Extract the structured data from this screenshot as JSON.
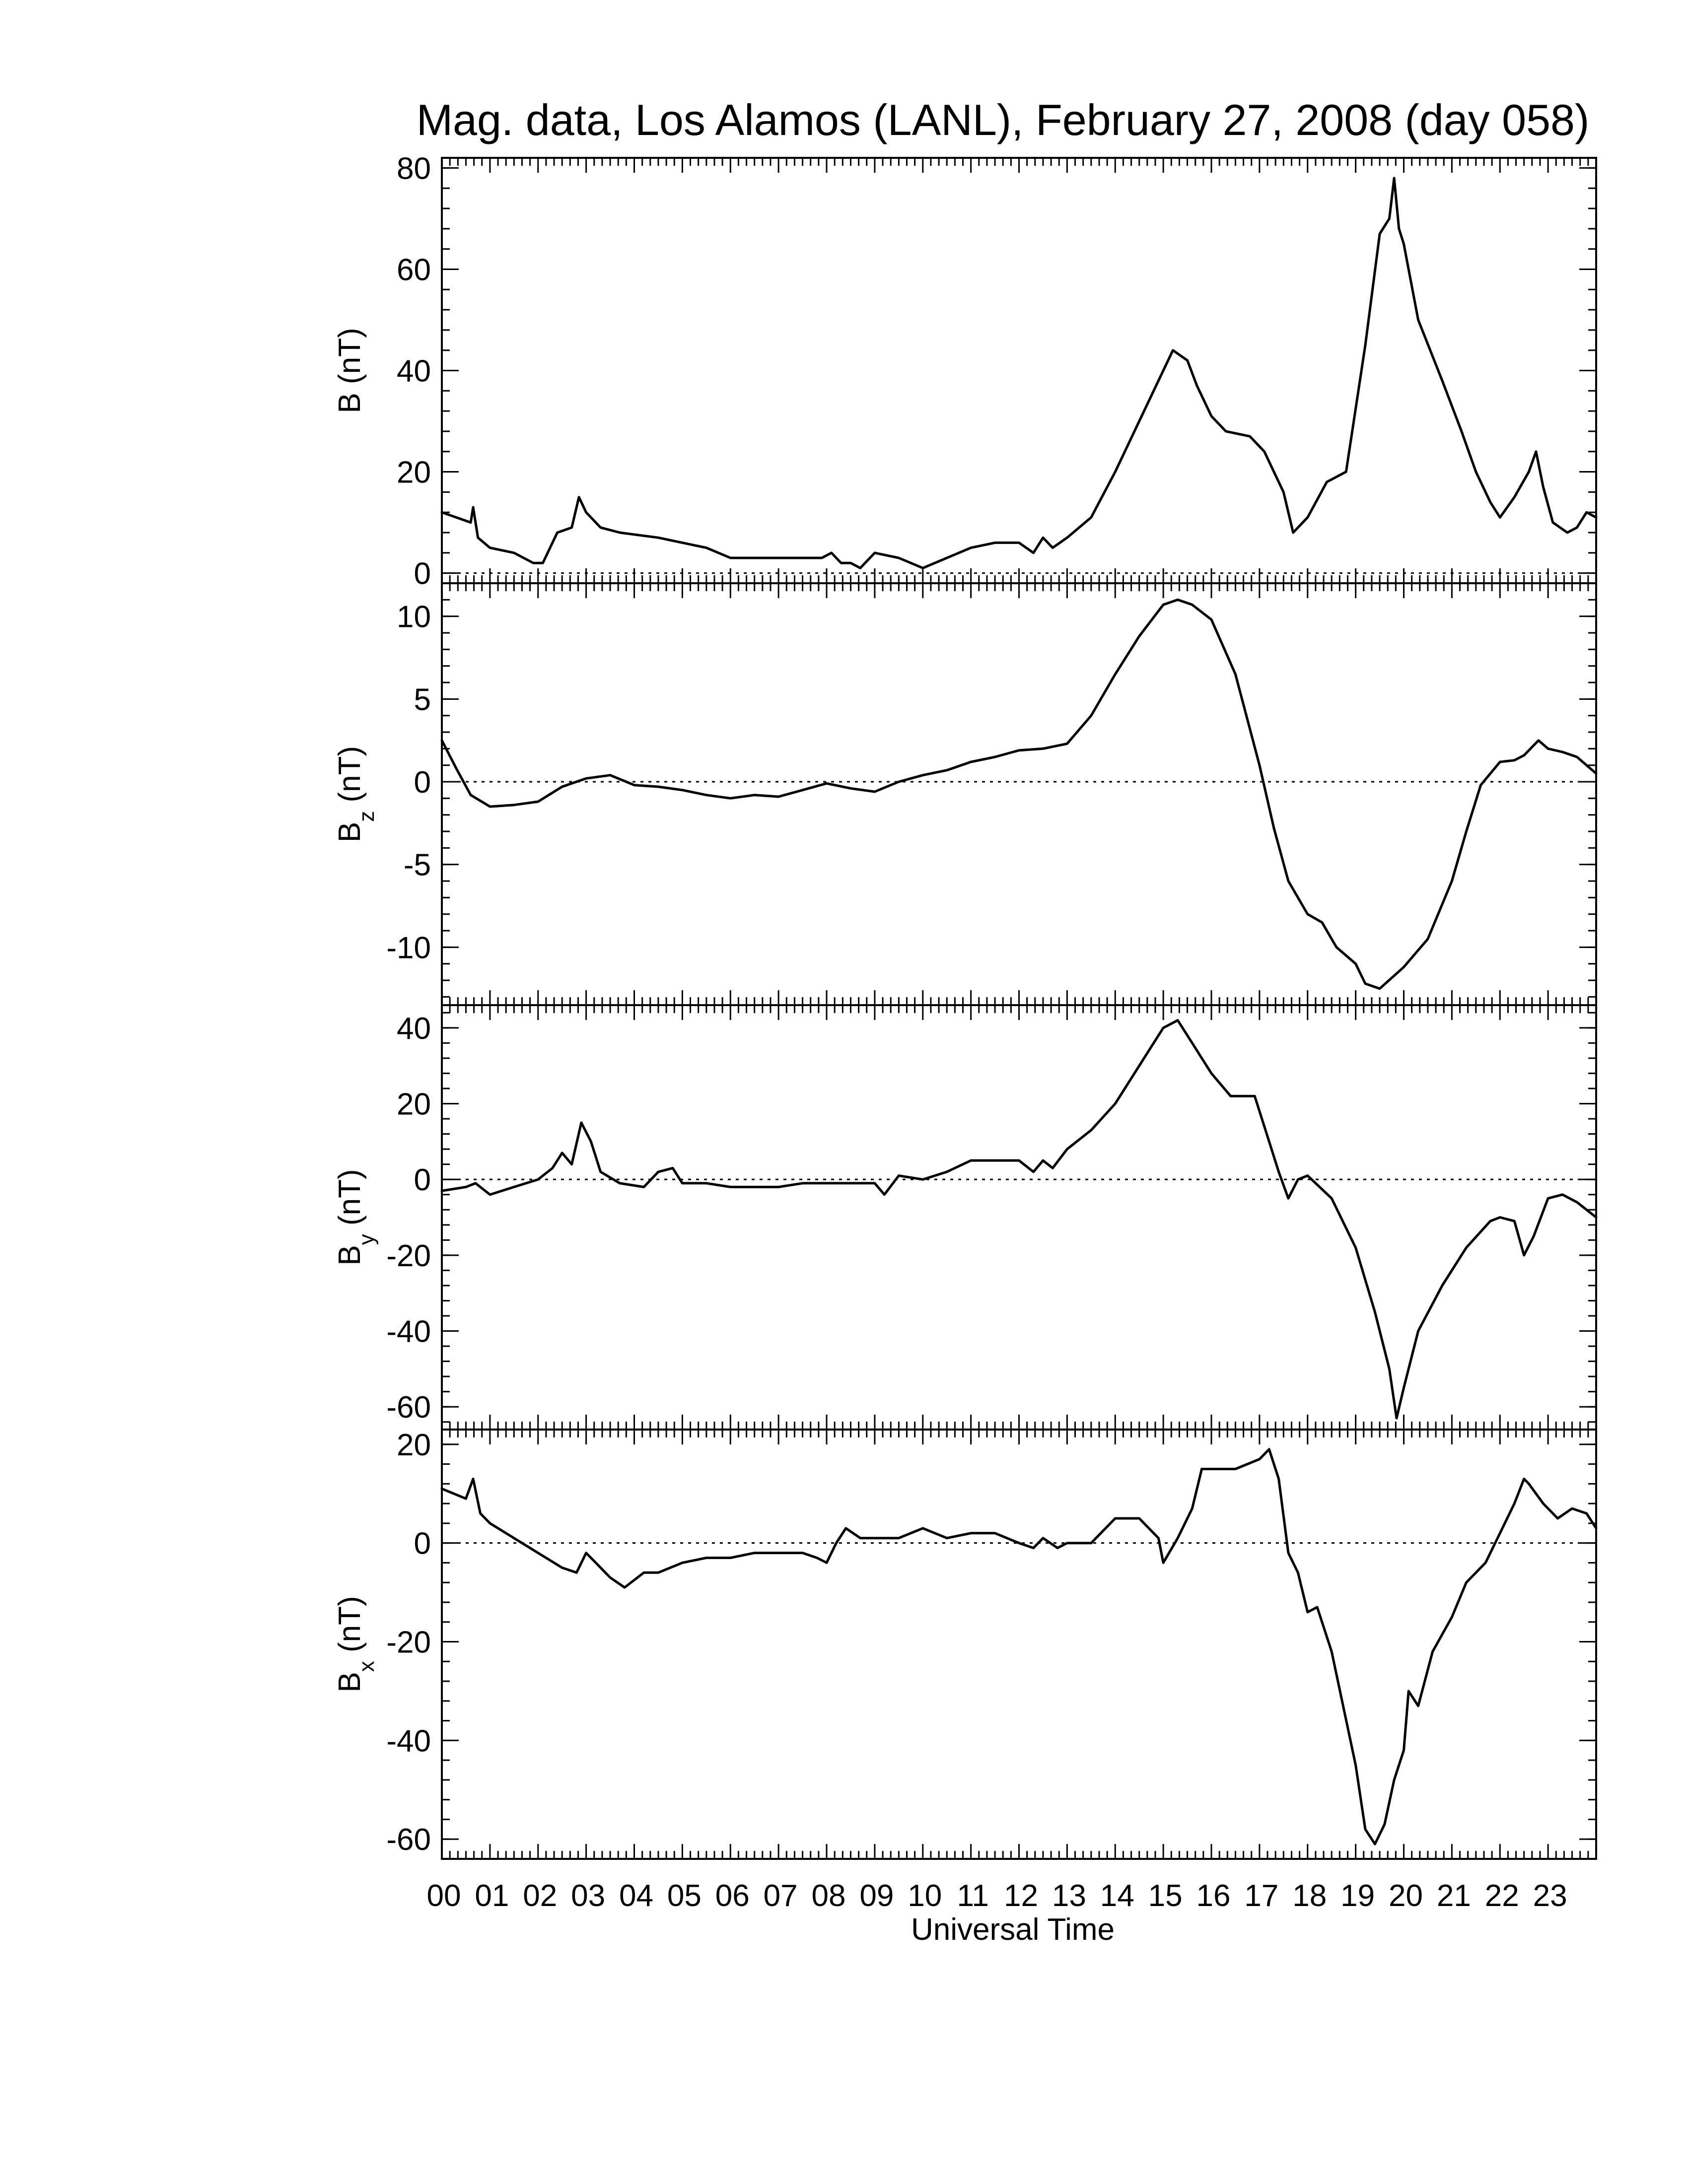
{
  "title": "Mag. data, Los Alamos (LANL), February 27, 2008 (day 058)",
  "chart_data": [
    {
      "type": "line",
      "panel": "B",
      "ylabel_main": "B",
      "ylabel_sub": "",
      "ylabel_unit": "(nT)",
      "ylim": [
        -2,
        82
      ],
      "yticks": [
        0,
        20,
        40,
        60,
        80
      ],
      "ytick_labels": [
        "0",
        "20",
        "40",
        "60",
        "80"
      ],
      "zero_line": true,
      "x": [
        0.0,
        0.6,
        0.65,
        0.75,
        1.0,
        1.5,
        1.9,
        2.1,
        2.4,
        2.7,
        2.85,
        3.0,
        3.3,
        3.7,
        4.5,
        5.0,
        5.5,
        6.0,
        6.5,
        7.0,
        7.5,
        7.9,
        8.1,
        8.3,
        8.5,
        8.7,
        9.0,
        9.5,
        10.0,
        10.5,
        11.0,
        11.5,
        12.0,
        12.3,
        12.5,
        12.7,
        13.0,
        13.5,
        14.0,
        14.5,
        15.0,
        15.2,
        15.5,
        15.7,
        16.0,
        16.3,
        16.8,
        17.1,
        17.3,
        17.5,
        17.7,
        18.0,
        18.4,
        18.8,
        19.2,
        19.5,
        19.7,
        19.8,
        19.9,
        20.0,
        20.3,
        20.8,
        21.2,
        21.5,
        21.8,
        22.0,
        22.3,
        22.6,
        22.75,
        22.9,
        23.1,
        23.4,
        23.6,
        23.8,
        24.0
      ],
      "values": [
        12,
        10,
        13,
        7,
        5,
        4,
        2,
        2,
        8,
        9,
        15,
        12,
        9,
        8,
        7,
        6,
        5,
        3,
        3,
        3,
        3,
        3,
        4,
        2,
        2,
        1,
        4,
        3,
        1,
        3,
        5,
        6,
        6,
        4,
        7,
        5,
        7,
        11,
        20,
        30,
        40,
        44,
        42,
        37,
        31,
        28,
        27,
        24,
        20,
        16,
        8,
        11,
        18,
        20,
        45,
        67,
        70,
        78,
        68,
        65,
        50,
        38,
        28,
        20,
        14,
        11,
        15,
        20,
        24,
        17,
        10,
        8,
        9,
        12,
        11
      ]
    },
    {
      "type": "line",
      "panel": "Bz",
      "ylabel_main": "B",
      "ylabel_sub": "z",
      "ylabel_unit": "(nT)",
      "ylim": [
        -13.5,
        12
      ],
      "yticks": [
        -10,
        -5,
        0,
        5,
        10
      ],
      "ytick_labels": [
        "-10",
        "-5",
        "0",
        "5",
        "10"
      ],
      "zero_line": true,
      "x": [
        0.0,
        0.3,
        0.6,
        1.0,
        1.5,
        2.0,
        2.5,
        3.0,
        3.5,
        4.0,
        4.5,
        5.0,
        5.5,
        6.0,
        6.5,
        7.0,
        7.5,
        8.0,
        8.5,
        9.0,
        9.5,
        10.0,
        10.5,
        11.0,
        11.5,
        12.0,
        12.5,
        13.0,
        13.5,
        14.0,
        14.5,
        15.0,
        15.3,
        15.6,
        16.0,
        16.5,
        17.0,
        17.3,
        17.6,
        18.0,
        18.3,
        18.6,
        19.0,
        19.2,
        19.5,
        20.0,
        20.5,
        21.0,
        21.3,
        21.6,
        22.0,
        22.3,
        22.5,
        22.8,
        23.0,
        23.3,
        23.6,
        24.0
      ],
      "values": [
        2.5,
        0.8,
        -0.8,
        -1.5,
        -1.4,
        -1.2,
        -0.3,
        0.2,
        0.4,
        -0.2,
        -0.3,
        -0.5,
        -0.8,
        -1.0,
        -0.8,
        -0.9,
        -0.5,
        -0.1,
        -0.4,
        -0.6,
        0.0,
        0.4,
        0.7,
        1.2,
        1.5,
        1.9,
        2.0,
        2.3,
        4.0,
        6.5,
        8.8,
        10.7,
        11.0,
        10.7,
        9.8,
        6.5,
        1.0,
        -2.8,
        -6.0,
        -8.0,
        -8.5,
        -10.0,
        -11.0,
        -12.2,
        -12.5,
        -11.2,
        -9.5,
        -6.0,
        -3.0,
        -0.2,
        1.2,
        1.3,
        1.6,
        2.5,
        2.0,
        1.8,
        1.5,
        0.5
      ]
    },
    {
      "type": "line",
      "panel": "By",
      "ylabel_main": "B",
      "ylabel_sub": "y",
      "ylabel_unit": "(nT)",
      "ylim": [
        -66,
        46
      ],
      "yticks": [
        -60,
        -40,
        -20,
        0,
        20,
        40
      ],
      "ytick_labels": [
        "-60",
        "-40",
        "-20",
        "0",
        "20",
        "40"
      ],
      "zero_line": true,
      "x": [
        0.0,
        0.5,
        0.7,
        1.0,
        1.5,
        2.0,
        2.3,
        2.5,
        2.7,
        2.9,
        3.1,
        3.3,
        3.7,
        4.2,
        4.5,
        4.8,
        5.0,
        5.5,
        6.0,
        6.5,
        7.0,
        7.5,
        8.0,
        8.5,
        9.0,
        9.2,
        9.5,
        10.0,
        10.5,
        11.0,
        11.5,
        12.0,
        12.3,
        12.5,
        12.7,
        13.0,
        13.5,
        14.0,
        14.5,
        15.0,
        15.3,
        15.6,
        16.0,
        16.4,
        16.9,
        17.2,
        17.4,
        17.6,
        17.8,
        18.0,
        18.5,
        19.0,
        19.4,
        19.7,
        19.85,
        20.0,
        20.3,
        20.8,
        21.3,
        21.8,
        22.0,
        22.3,
        22.5,
        22.7,
        23.0,
        23.3,
        23.6,
        24.0
      ],
      "values": [
        -3,
        -2,
        -1,
        -4,
        -2,
        0,
        3,
        7,
        4,
        15,
        10,
        2,
        -1,
        -2,
        2,
        3,
        -1,
        -1,
        -2,
        -2,
        -2,
        -1,
        -1,
        -1,
        -1,
        -4,
        1,
        0,
        2,
        5,
        5,
        5,
        2,
        5,
        3,
        8,
        13,
        20,
        30,
        40,
        42,
        36,
        28,
        22,
        22,
        10,
        2,
        -5,
        0,
        1,
        -5,
        -18,
        -35,
        -50,
        -63,
        -55,
        -40,
        -28,
        -18,
        -11,
        -10,
        -11,
        -20,
        -15,
        -5,
        -4,
        -6,
        -10
      ]
    },
    {
      "type": "line",
      "panel": "Bx",
      "ylabel_main": "B",
      "ylabel_sub": "x",
      "ylabel_unit": "(nT)",
      "ylim": [
        -64,
        23
      ],
      "yticks": [
        -60,
        -40,
        -20,
        0,
        20
      ],
      "ytick_labels": [
        "-60",
        "-40",
        "-20",
        "0",
        "20"
      ],
      "zero_line": true,
      "x": [
        0.0,
        0.5,
        0.65,
        0.8,
        1.0,
        1.5,
        2.0,
        2.5,
        2.8,
        3.0,
        3.2,
        3.5,
        3.8,
        4.2,
        4.5,
        5.0,
        5.5,
        6.0,
        6.5,
        7.0,
        7.5,
        7.8,
        8.0,
        8.2,
        8.4,
        8.7,
        9.0,
        9.5,
        10.0,
        10.5,
        11.0,
        11.5,
        12.0,
        12.3,
        12.5,
        12.8,
        13.0,
        13.5,
        14.0,
        14.5,
        14.9,
        15.0,
        15.3,
        15.6,
        15.8,
        16.0,
        16.5,
        17.0,
        17.2,
        17.4,
        17.6,
        17.8,
        18.0,
        18.2,
        18.5,
        19.0,
        19.2,
        19.4,
        19.6,
        19.8,
        20.0,
        20.1,
        20.3,
        20.6,
        21.0,
        21.3,
        21.7,
        22.0,
        22.3,
        22.5,
        22.6,
        22.9,
        23.2,
        23.5,
        23.8,
        24.0
      ],
      "values": [
        11,
        9,
        13,
        6,
        4,
        1,
        -2,
        -5,
        -6,
        -2,
        -4,
        -7,
        -9,
        -6,
        -6,
        -4,
        -3,
        -3,
        -2,
        -2,
        -2,
        -3,
        -4,
        0,
        3,
        1,
        1,
        1,
        3,
        1,
        2,
        2,
        0,
        -1,
        1,
        -1,
        0,
        0,
        5,
        5,
        1,
        -4,
        1,
        7,
        15,
        15,
        15,
        17,
        19,
        13,
        -2,
        -6,
        -14,
        -13,
        -22,
        -45,
        -58,
        -61,
        -57,
        -48,
        -42,
        -30,
        -33,
        -22,
        -15,
        -8,
        -4,
        2,
        8,
        13,
        12,
        8,
        5,
        7,
        6,
        3
      ]
    }
  ],
  "x_axis": {
    "label": "Universal Time",
    "xlim": [
      0,
      24
    ],
    "ticks": [
      0,
      1,
      2,
      3,
      4,
      5,
      6,
      7,
      8,
      9,
      10,
      11,
      12,
      13,
      14,
      15,
      16,
      17,
      18,
      19,
      20,
      21,
      22,
      23
    ],
    "tick_labels": [
      "00",
      "01",
      "02",
      "03",
      "04",
      "05",
      "06",
      "07",
      "08",
      "09",
      "10",
      "11",
      "12",
      "13",
      "14",
      "15",
      "16",
      "17",
      "18",
      "19",
      "20",
      "21",
      "22",
      "23"
    ]
  }
}
